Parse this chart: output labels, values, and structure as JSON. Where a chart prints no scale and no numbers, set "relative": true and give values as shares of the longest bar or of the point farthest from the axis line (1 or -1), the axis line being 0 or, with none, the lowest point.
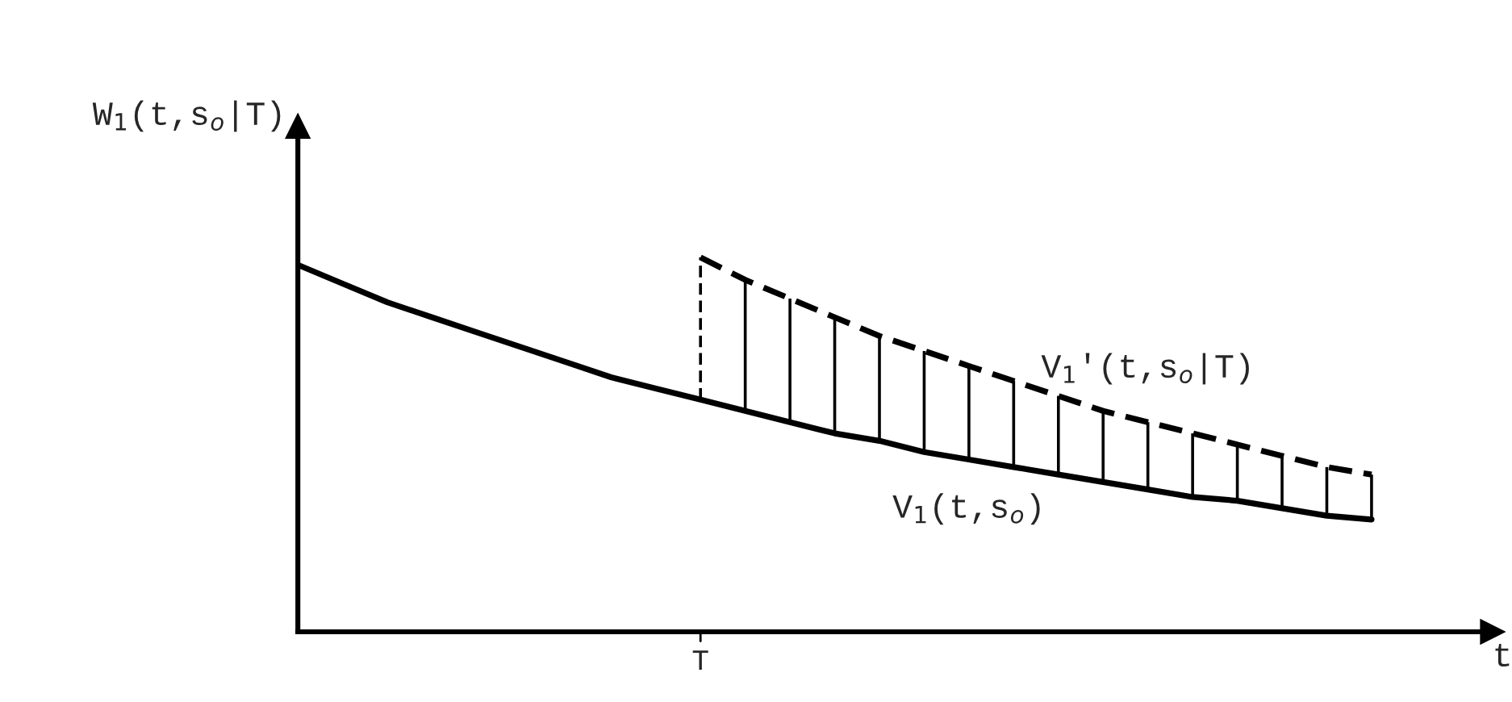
{
  "chart_data": {
    "type": "line",
    "relative": true,
    "xlabel": "t",
    "ylabel": "W$_{1}$(t,s$_{o}$|T)",
    "marker": "none",
    "annotations": [
      "T"
    ],
    "categories": [
      null,
      null,
      null,
      null,
      null,
      null,
      null,
      null,
      null,
      null,
      null,
      null,
      null,
      null,
      null,
      null,
      null,
      null,
      null,
      null,
      null,
      null,
      null,
      null,
      null
    ],
    "series": [
      {
        "name": "V$_{1}$(t,s$_{o}$)",
        "color": "#000000",
        "line_style": "solid",
        "values": [
          0.98,
          0.93,
          0.88,
          0.84,
          0.8,
          0.76,
          0.72,
          0.68,
          0.65,
          0.62,
          0.59,
          0.56,
          0.53,
          0.51,
          0.48,
          0.46,
          0.44,
          0.42,
          0.4,
          0.38,
          0.36,
          0.35,
          0.33,
          0.31,
          0.3
        ]
      },
      {
        "name": "V$_{1}$'(t,s$_{o}$|T)",
        "color": "#000000",
        "line_style": "dashed",
        "values": [
          null,
          null,
          null,
          null,
          null,
          null,
          null,
          null,
          null,
          1.0,
          0.94,
          0.89,
          0.84,
          0.79,
          0.75,
          0.71,
          0.67,
          0.63,
          0.59,
          0.56,
          0.53,
          0.5,
          0.47,
          0.44,
          0.42
        ]
      }
    ]
  }
}
